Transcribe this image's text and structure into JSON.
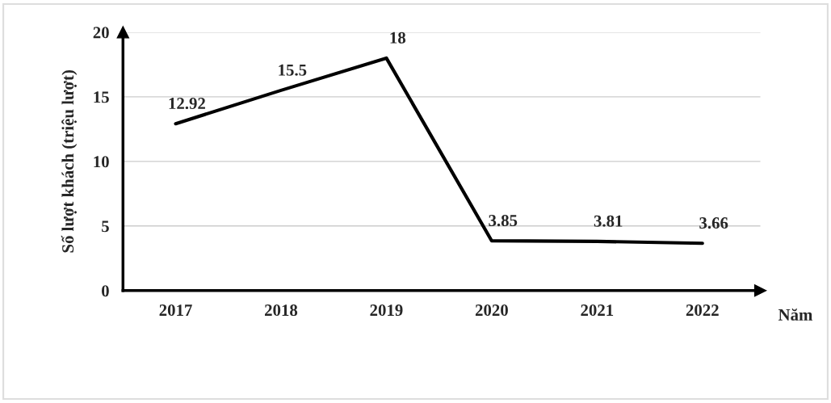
{
  "chart_data": {
    "type": "line",
    "categories": [
      "2017",
      "2018",
      "2019",
      "2020",
      "2021",
      "2022"
    ],
    "series": [
      {
        "color": "#000000",
        "values": [
          12.92,
          15.5,
          18,
          3.85,
          3.81,
          3.66
        ]
      }
    ],
    "ylabel": "Số lượt khách (triệu lượt)",
    "xlabel": "Năm",
    "ylim": [
      0,
      20
    ],
    "yticks": [
      0,
      5,
      10,
      15,
      20
    ],
    "grid": "y",
    "data_labels": true,
    "marker": "none",
    "line_style": "solid",
    "legend": false
  }
}
